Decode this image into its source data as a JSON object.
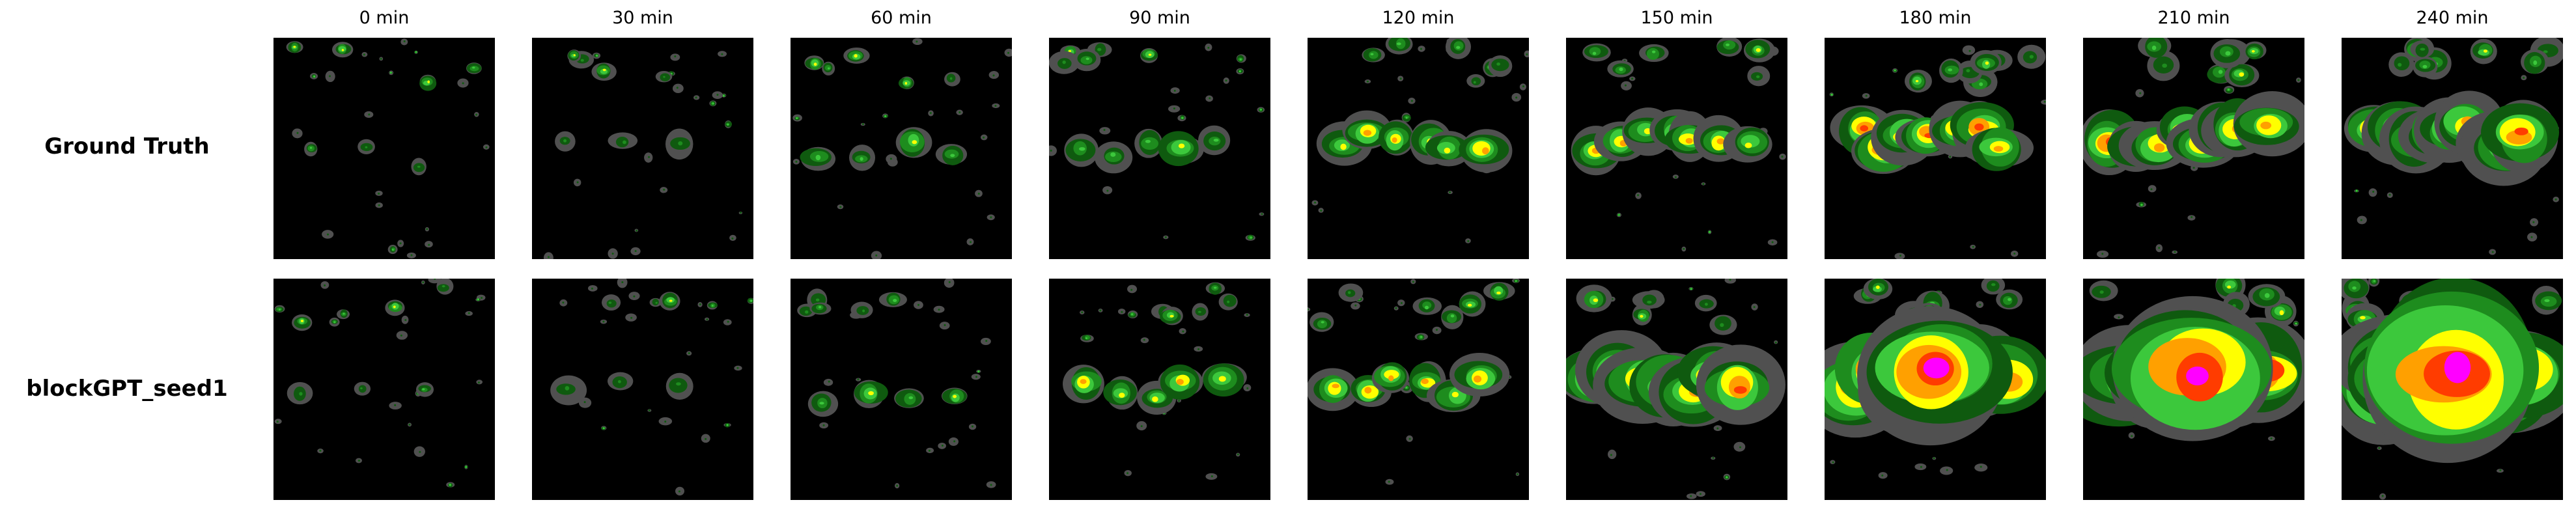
{
  "figure": {
    "time_labels": [
      "0 min",
      "30 min",
      "60 min",
      "90 min",
      "120 min",
      "150 min",
      "180 min",
      "210 min",
      "240 min"
    ],
    "rows": [
      {
        "label": "Ground Truth"
      },
      {
        "label": "blockGPT_seed1"
      }
    ]
  },
  "colors": {
    "background": "#000000",
    "gray_fringe": "#505050",
    "dark_green": "#0f5a0f",
    "green": "#1e8c1e",
    "light_green": "#3cc83c",
    "yellow": "#ffff00",
    "orange": "#ffa000",
    "red": "#ff3c00",
    "magenta": "#ff00ff"
  }
}
